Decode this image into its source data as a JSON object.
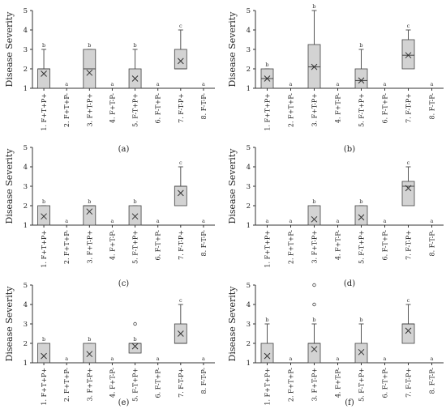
{
  "chart_data": [
    {
      "type": "box",
      "panel_label": "(a)",
      "ylabel": "Disease Severity",
      "ylim": [
        1,
        5
      ],
      "yticks": [
        1,
        2,
        3,
        4,
        5
      ],
      "categories": [
        "1. F+T+P+",
        "2. F+T+P-",
        "3. F+T-P+",
        "4. F+T-P-",
        "5. F-T+P+",
        "6. F-T+P-",
        "7. F-T-P+",
        "8. F-T-P-"
      ],
      "boxes": [
        {
          "min": 1,
          "q1": 1,
          "median": 2,
          "q3": 2,
          "max": 3,
          "mean": 1.75,
          "outliers": []
        },
        null,
        {
          "min": 1,
          "q1": 1,
          "median": 2,
          "q3": 3,
          "max": 3,
          "mean": 1.8,
          "outliers": []
        },
        null,
        {
          "min": 1,
          "q1": 1,
          "median": 1,
          "q3": 2,
          "max": 3,
          "mean": 1.5,
          "outliers": []
        },
        null,
        {
          "min": 2,
          "q1": 2,
          "median": 2,
          "q3": 3,
          "max": 4,
          "mean": 2.4,
          "outliers": []
        },
        null
      ],
      "letters": [
        "b",
        "a",
        "b",
        "a",
        "b",
        "a",
        "c",
        "a"
      ]
    },
    {
      "type": "box",
      "panel_label": "(b)",
      "ylabel": "Disease Severity",
      "ylim": [
        1,
        5
      ],
      "yticks": [
        1,
        2,
        3,
        4,
        5
      ],
      "categories": [
        "1. F+T+P+",
        "2. F+T+P-",
        "3. F+T-P+",
        "4. F+T-P-",
        "5. F-T+P+",
        "6. F-T+P-",
        "7. F-T-P+",
        "8. F-T-P-"
      ],
      "boxes": [
        {
          "min": 1,
          "q1": 1,
          "median": 1.5,
          "q3": 2,
          "max": 2,
          "mean": 1.5,
          "outliers": []
        },
        null,
        {
          "min": 1,
          "q1": 1,
          "median": 2.1,
          "q3": 3.25,
          "max": 5,
          "mean": 2.1,
          "outliers": []
        },
        null,
        {
          "min": 1,
          "q1": 1,
          "median": 1.4,
          "q3": 2,
          "max": 3,
          "mean": 1.4,
          "outliers": []
        },
        null,
        {
          "min": 2,
          "q1": 2,
          "median": 2.7,
          "q3": 3.5,
          "max": 4,
          "mean": 2.7,
          "outliers": []
        },
        null
      ],
      "letters": [
        "b",
        "a",
        "b",
        "a",
        "b",
        "a",
        "c",
        "a"
      ]
    },
    {
      "type": "box",
      "panel_label": "(c)",
      "ylabel": "Disease Severity",
      "ylim": [
        1,
        5
      ],
      "yticks": [
        1,
        2,
        3,
        4,
        5
      ],
      "categories": [
        "1. F+T+P+",
        "2. F+T+P-",
        "3. F+T-P+",
        "4. F+T-P-",
        "5. F-T+P+",
        "6. F-T+P-",
        "7. F-T-P+",
        "8. F-T-P-"
      ],
      "boxes": [
        {
          "min": 1,
          "q1": 1,
          "median": 1,
          "q3": 2,
          "max": 2,
          "mean": 1.45,
          "outliers": []
        },
        null,
        {
          "min": 1,
          "q1": 1,
          "median": 2,
          "q3": 2,
          "max": 2,
          "mean": 1.7,
          "outliers": []
        },
        null,
        {
          "min": 1,
          "q1": 1,
          "median": 1,
          "q3": 2,
          "max": 2,
          "mean": 1.45,
          "outliers": []
        },
        null,
        {
          "min": 2,
          "q1": 2,
          "median": 3,
          "q3": 3,
          "max": 4,
          "mean": 2.65,
          "outliers": []
        },
        null
      ],
      "letters": [
        "b",
        "a",
        "b",
        "a",
        "b",
        "a",
        "c",
        "a"
      ]
    },
    {
      "type": "box",
      "panel_label": "(d)",
      "ylabel": "Disease Severity",
      "ylim": [
        1,
        5
      ],
      "yticks": [
        1,
        2,
        3,
        4,
        5
      ],
      "categories": [
        "1. F+T+P+",
        "2. F+T+P-",
        "3. F+T-P+",
        "4. F+T-P-",
        "5. F-T+P+",
        "6. F-T+P-",
        "7. F-T-P+",
        "8. F-T-P-"
      ],
      "boxes": [
        null,
        null,
        {
          "min": 1,
          "q1": 1,
          "median": 1,
          "q3": 2,
          "max": 2,
          "mean": 1.3,
          "outliers": []
        },
        null,
        {
          "min": 1,
          "q1": 1,
          "median": 1,
          "q3": 2,
          "max": 2,
          "mean": 1.4,
          "outliers": []
        },
        null,
        {
          "min": 2,
          "q1": 2,
          "median": 3,
          "q3": 3.25,
          "max": 4,
          "mean": 2.9,
          "outliers": []
        },
        null
      ],
      "letters": [
        "a",
        "a",
        "b",
        "a",
        "b",
        "a",
        "c",
        "a"
      ]
    },
    {
      "type": "box",
      "panel_label": "(e)",
      "ylabel": "Disease Severity",
      "ylim": [
        1,
        5
      ],
      "yticks": [
        1,
        2,
        3,
        4,
        5
      ],
      "categories": [
        "1. F+T+P+",
        "2. F+T+P-",
        "3. F+T-P+",
        "4. F+T-P-",
        "5. F-T+P+",
        "6. F-T+P-",
        "7. F-T-P+",
        "8. F-T-P-"
      ],
      "boxes": [
        {
          "min": 1,
          "q1": 1,
          "median": 1,
          "q3": 2,
          "max": 2,
          "mean": 1.35,
          "outliers": []
        },
        null,
        {
          "min": 1,
          "q1": 1,
          "median": 1,
          "q3": 2,
          "max": 2,
          "mean": 1.45,
          "outliers": []
        },
        null,
        {
          "min": 1.5,
          "q1": 1.5,
          "median": 2,
          "q3": 2,
          "max": 2,
          "mean": 1.85,
          "outliers": [
            3
          ]
        },
        null,
        {
          "min": 2,
          "q1": 2,
          "median": 2,
          "q3": 3,
          "max": 4,
          "mean": 2.5,
          "outliers": []
        },
        null
      ],
      "letters": [
        "b",
        "a",
        "b",
        "a",
        "b",
        "a",
        "c",
        "a"
      ]
    },
    {
      "type": "box",
      "panel_label": "(f)",
      "ylabel": "Disease Severity",
      "ylim": [
        1,
        5
      ],
      "yticks": [
        1,
        2,
        3,
        4,
        5
      ],
      "categories": [
        "1. F+T+P+",
        "2. F+T+P-",
        "3. F+T-P+",
        "4. F+T-P-",
        "5. F-T+P+",
        "6. F-T+P-",
        "7. F-T-P+",
        "8. F-T-P-"
      ],
      "boxes": [
        {
          "min": 1,
          "q1": 1,
          "median": 1,
          "q3": 2,
          "max": 3,
          "mean": 1.35,
          "outliers": []
        },
        null,
        {
          "min": 1,
          "q1": 1,
          "median": 2,
          "q3": 2,
          "max": 3,
          "mean": 1.7,
          "outliers": [
            4,
            5
          ]
        },
        null,
        {
          "min": 1,
          "q1": 1,
          "median": 1,
          "q3": 2,
          "max": 3,
          "mean": 1.55,
          "outliers": []
        },
        null,
        {
          "min": 2,
          "q1": 2,
          "median": 3,
          "q3": 3,
          "max": 4,
          "mean": 2.65,
          "outliers": []
        },
        null
      ],
      "letters": [
        "b",
        "a",
        "b",
        "a",
        "b",
        "a",
        "c",
        "a"
      ]
    }
  ],
  "colors": {
    "box_fill": "#d3d3d3",
    "box_stroke": "#444444",
    "whisker": "#555555",
    "axis": "#333333",
    "text": "#222222"
  }
}
